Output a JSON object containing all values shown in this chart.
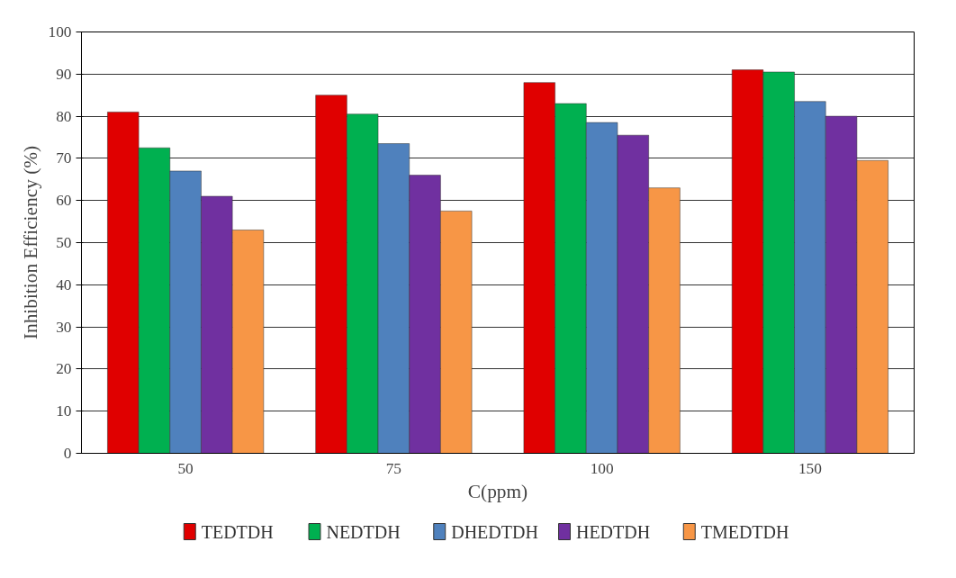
{
  "chart_data": {
    "type": "bar",
    "xlabel": "C(ppm)",
    "ylabel": "Inhibition Efficiency (%)",
    "categories": [
      "50",
      "75",
      "100",
      "150"
    ],
    "series": [
      {
        "name": "TEDTDH",
        "color": "#e00000",
        "values": [
          81,
          85,
          88,
          91
        ]
      },
      {
        "name": "NEDTDH",
        "color": "#00b050",
        "values": [
          72.5,
          80.5,
          83,
          90.5
        ]
      },
      {
        "name": "DHEDTDH",
        "color": "#4f81bd",
        "values": [
          67,
          73.5,
          78.5,
          83.5
        ]
      },
      {
        "name": "HEDTDH",
        "color": "#7030a0",
        "values": [
          61,
          66,
          75.5,
          80
        ]
      },
      {
        "name": "TMEDTDH",
        "color": "#f79646",
        "values": [
          53,
          57.5,
          63,
          69.5
        ]
      }
    ],
    "ylim": [
      0,
      100
    ],
    "yticks": [
      0,
      10,
      20,
      30,
      40,
      50,
      60,
      70,
      80,
      90,
      100
    ],
    "grid": "y",
    "legend": "bottom"
  }
}
